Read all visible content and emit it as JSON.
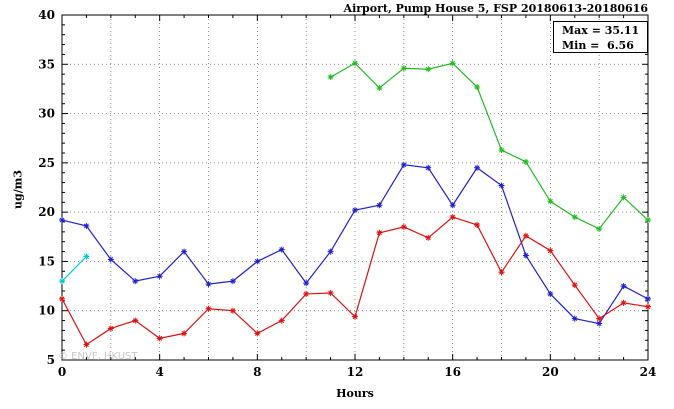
{
  "chart_data": {
    "type": "line",
    "title": "Airport, Pump House 5, FSP 20180613-20180616",
    "xlabel": "Hours",
    "ylabel": "ug/m3",
    "xlim": [
      0,
      24
    ],
    "ylim": [
      5,
      40
    ],
    "xticks": [
      0,
      4,
      8,
      12,
      16,
      20,
      24
    ],
    "yticks": [
      5,
      10,
      15,
      20,
      25,
      30,
      35,
      40
    ],
    "grid": true,
    "grid_x_step": 2,
    "grid_y_step": 5,
    "legend_position": "none",
    "annotations": {
      "max_label": "Max = 35.11",
      "min_label": "Min =  6.56"
    },
    "watermark": "© ENVF, HKUST",
    "colors": {
      "blue_series": "#2222cc",
      "red_series": "#dd1111",
      "green_series": "#22bb22",
      "cyan_series": "#00cccc",
      "grid": "#666666",
      "axis": "#000000"
    },
    "series": [
      {
        "name": "green-series",
        "color_key": "green_series",
        "x": [
          11,
          12,
          13,
          14,
          15,
          16,
          17,
          18,
          19,
          20,
          21,
          22,
          23,
          24
        ],
        "y": [
          33.7,
          35.11,
          32.6,
          34.6,
          34.5,
          35.1,
          32.7,
          26.3,
          25.1,
          21.1,
          19.5,
          18.3,
          21.5,
          19.2
        ]
      },
      {
        "name": "blue-series",
        "color_key": "blue_series",
        "x": [
          0,
          1,
          2,
          3,
          4,
          5,
          6,
          7,
          8,
          9,
          10,
          11,
          12,
          13,
          14,
          15,
          16,
          17,
          18,
          19,
          20,
          21,
          22,
          23,
          24
        ],
        "y": [
          19.2,
          18.6,
          15.2,
          13.0,
          13.5,
          16.0,
          12.7,
          13.0,
          15.0,
          16.2,
          12.8,
          16.0,
          20.2,
          20.7,
          24.8,
          24.5,
          20.7,
          24.5,
          22.7,
          15.6,
          11.7,
          9.2,
          8.7,
          12.5,
          11.2
        ]
      },
      {
        "name": "red-series",
        "color_key": "red_series",
        "x": [
          0,
          1,
          2,
          3,
          4,
          5,
          6,
          7,
          8,
          9,
          10,
          11,
          12,
          13,
          14,
          15,
          16,
          17,
          18,
          19,
          20,
          21,
          22,
          23,
          24
        ],
        "y": [
          11.2,
          6.56,
          8.2,
          9.0,
          7.2,
          7.7,
          10.2,
          10.0,
          7.7,
          9.0,
          11.7,
          11.8,
          9.4,
          17.9,
          18.5,
          17.4,
          19.5,
          18.7,
          13.9,
          17.6,
          16.1,
          12.6,
          9.2,
          10.8,
          10.4
        ]
      },
      {
        "name": "cyan-series",
        "color_key": "cyan_series",
        "x": [
          0,
          1
        ],
        "y": [
          13.0,
          15.5
        ]
      }
    ]
  }
}
